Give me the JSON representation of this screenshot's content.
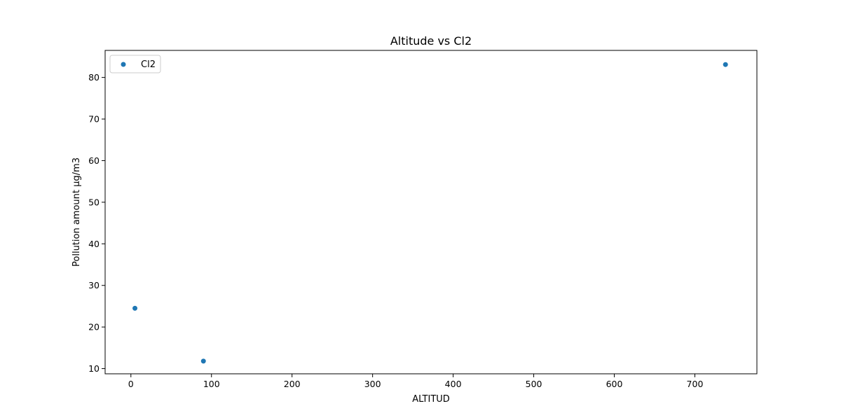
{
  "chart_data": {
    "type": "scatter",
    "title": "Altitude vs Cl2",
    "xlabel": "ALTITUD",
    "ylabel": "Pollution amount μg/m3",
    "xlim": [
      -32,
      777
    ],
    "ylim": [
      8.75,
      86.5
    ],
    "xticks": [
      0,
      100,
      200,
      300,
      400,
      500,
      600,
      700
    ],
    "yticks": [
      10,
      20,
      30,
      40,
      50,
      60,
      70,
      80
    ],
    "xtick_labels": [
      "0",
      "100",
      "200",
      "300",
      "400",
      "500",
      "600",
      "700"
    ],
    "ytick_labels": [
      "10",
      "20",
      "30",
      "40",
      "50",
      "60",
      "70",
      "80"
    ],
    "grid": false,
    "legend_position": "top-left",
    "series": [
      {
        "name": "Cl2",
        "color": "#1f77b4",
        "points": [
          {
            "x": 5,
            "y": 24.5
          },
          {
            "x": 90,
            "y": 11.8
          },
          {
            "x": 738,
            "y": 83.1
          }
        ]
      }
    ]
  }
}
